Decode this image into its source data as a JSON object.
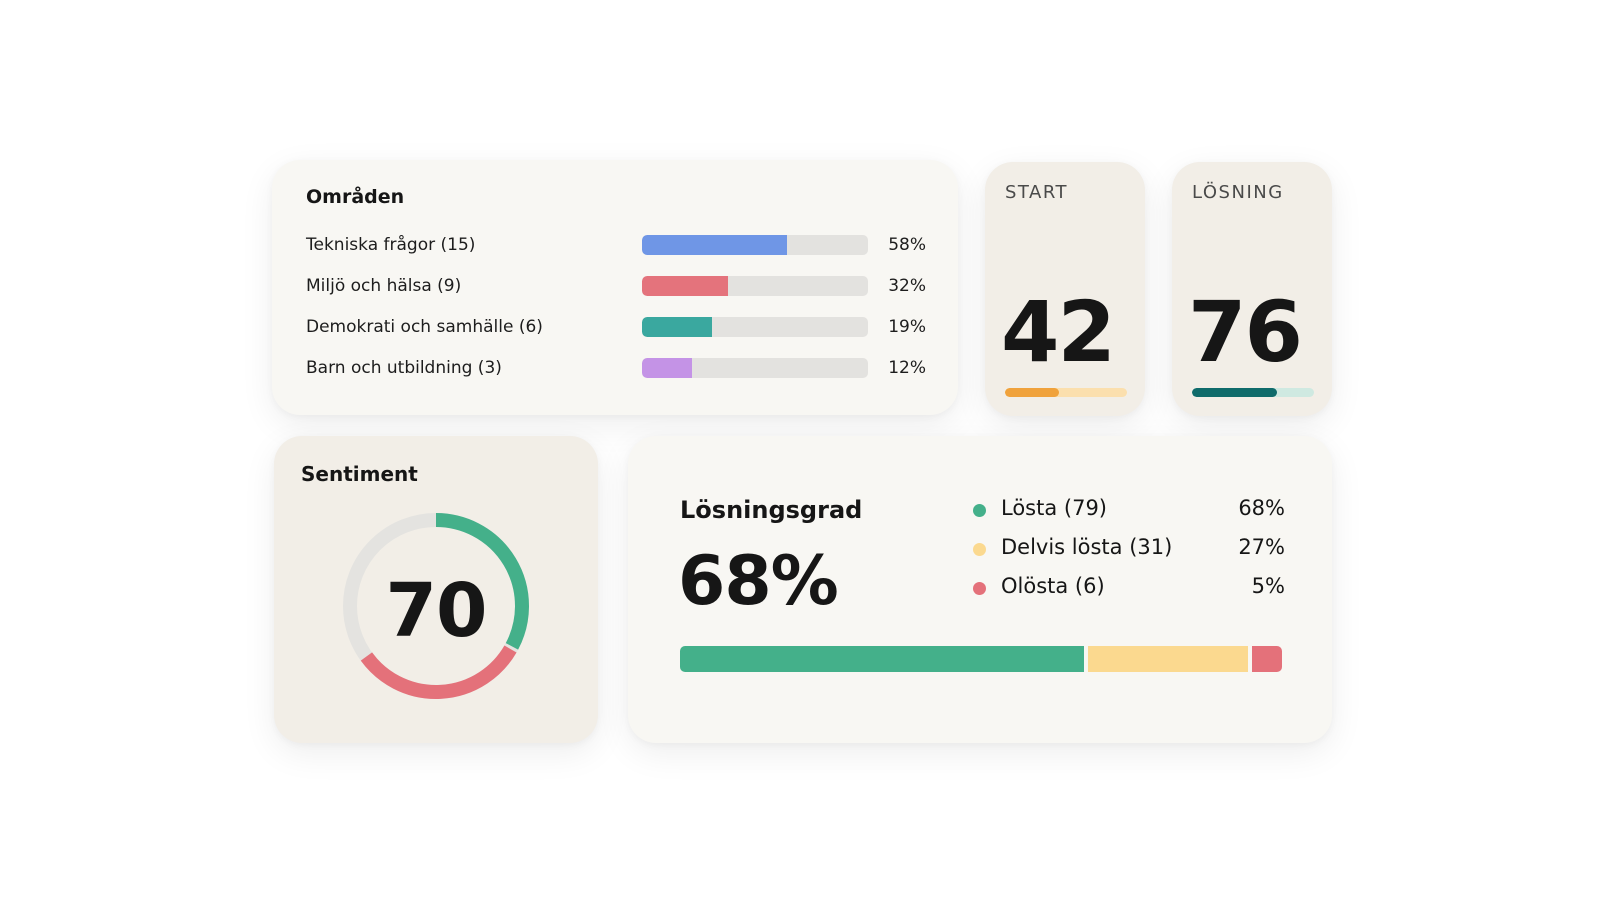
{
  "areas": {
    "title": "Områden",
    "items": [
      {
        "label": "Tekniska frågor (15)",
        "percent_label": "58%",
        "fill": 0.64,
        "color": "#6f96e6"
      },
      {
        "label": "Miljö och hälsa (9)",
        "percent_label": "32%",
        "fill": 0.38,
        "color": "#e4737c"
      },
      {
        "label": "Demokrati och samhälle (6)",
        "percent_label": "19%",
        "fill": 0.31,
        "color": "#3aa89f"
      },
      {
        "label": "Barn och utbildning (3)",
        "percent_label": "12%",
        "fill": 0.22,
        "color": "#c493e6"
      }
    ]
  },
  "kpis": {
    "start": {
      "label": "START",
      "value": "42",
      "fill": 0.44,
      "color": "#f0a23c",
      "track_color": "#fbdfae"
    },
    "losning": {
      "label": "LÖSNING",
      "value": "76",
      "fill": 0.7,
      "color": "#0f6b6b",
      "track_color": "#cfe9e1"
    }
  },
  "sentiment": {
    "title": "Sentiment",
    "value": "70",
    "positive_color": "#44b08a",
    "negative_color": "#e4717a",
    "track_color": "#e4e3e0"
  },
  "resolution": {
    "title": "Lösningsgrad",
    "big_value": "68%",
    "legend": [
      {
        "label": "Lösta (79)",
        "percent_label": "68%",
        "color": "#44b08a",
        "share": 68
      },
      {
        "label": "Delvis lösta (31)",
        "percent_label": "27%",
        "color": "#fbd98f",
        "share": 27
      },
      {
        "label": "Olösta (6)",
        "percent_label": "5%",
        "color": "#e4717a",
        "share": 5
      }
    ]
  }
}
